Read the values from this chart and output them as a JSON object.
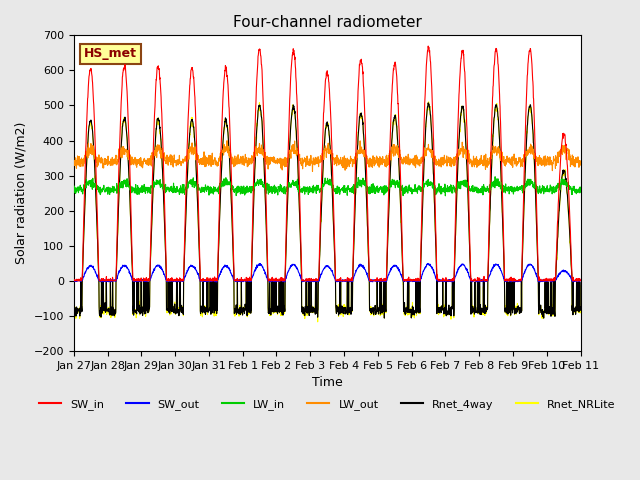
{
  "title": "Four-channel radiometer",
  "xlabel": "Time",
  "ylabel": "Solar radiation (W/m2)",
  "ylim": [
    -200,
    700
  ],
  "yticks": [
    -200,
    -100,
    0,
    100,
    200,
    300,
    400,
    500,
    600,
    700
  ],
  "x_labels": [
    "Jan 27",
    "Jan 28",
    "Jan 29",
    "Jan 30",
    "Jan 31",
    "Feb 1",
    "Feb 2",
    "Feb 3",
    "Feb 4",
    "Feb 5",
    "Feb 6",
    "Feb 7",
    "Feb 8",
    "Feb 9",
    "Feb 10",
    "Feb 11"
  ],
  "annotation_text": "HS_met",
  "legend_entries": [
    "SW_in",
    "SW_out",
    "LW_in",
    "LW_out",
    "Rnet_4way",
    "Rnet_NRLite"
  ],
  "legend_colors": [
    "#FF0000",
    "#0000FF",
    "#00CC00",
    "#FF8C00",
    "#000000",
    "#FFFF00"
  ],
  "bg_color": "#E8E8E8",
  "plot_bg_color": "#FFFFFF",
  "grid_color": "#FFFFFF",
  "n_days": 15,
  "day_points": 144,
  "day_peaks_SW": [
    605,
    615,
    610,
    607,
    605,
    660,
    655,
    595,
    630,
    620,
    665,
    655,
    660,
    660,
    420
  ]
}
